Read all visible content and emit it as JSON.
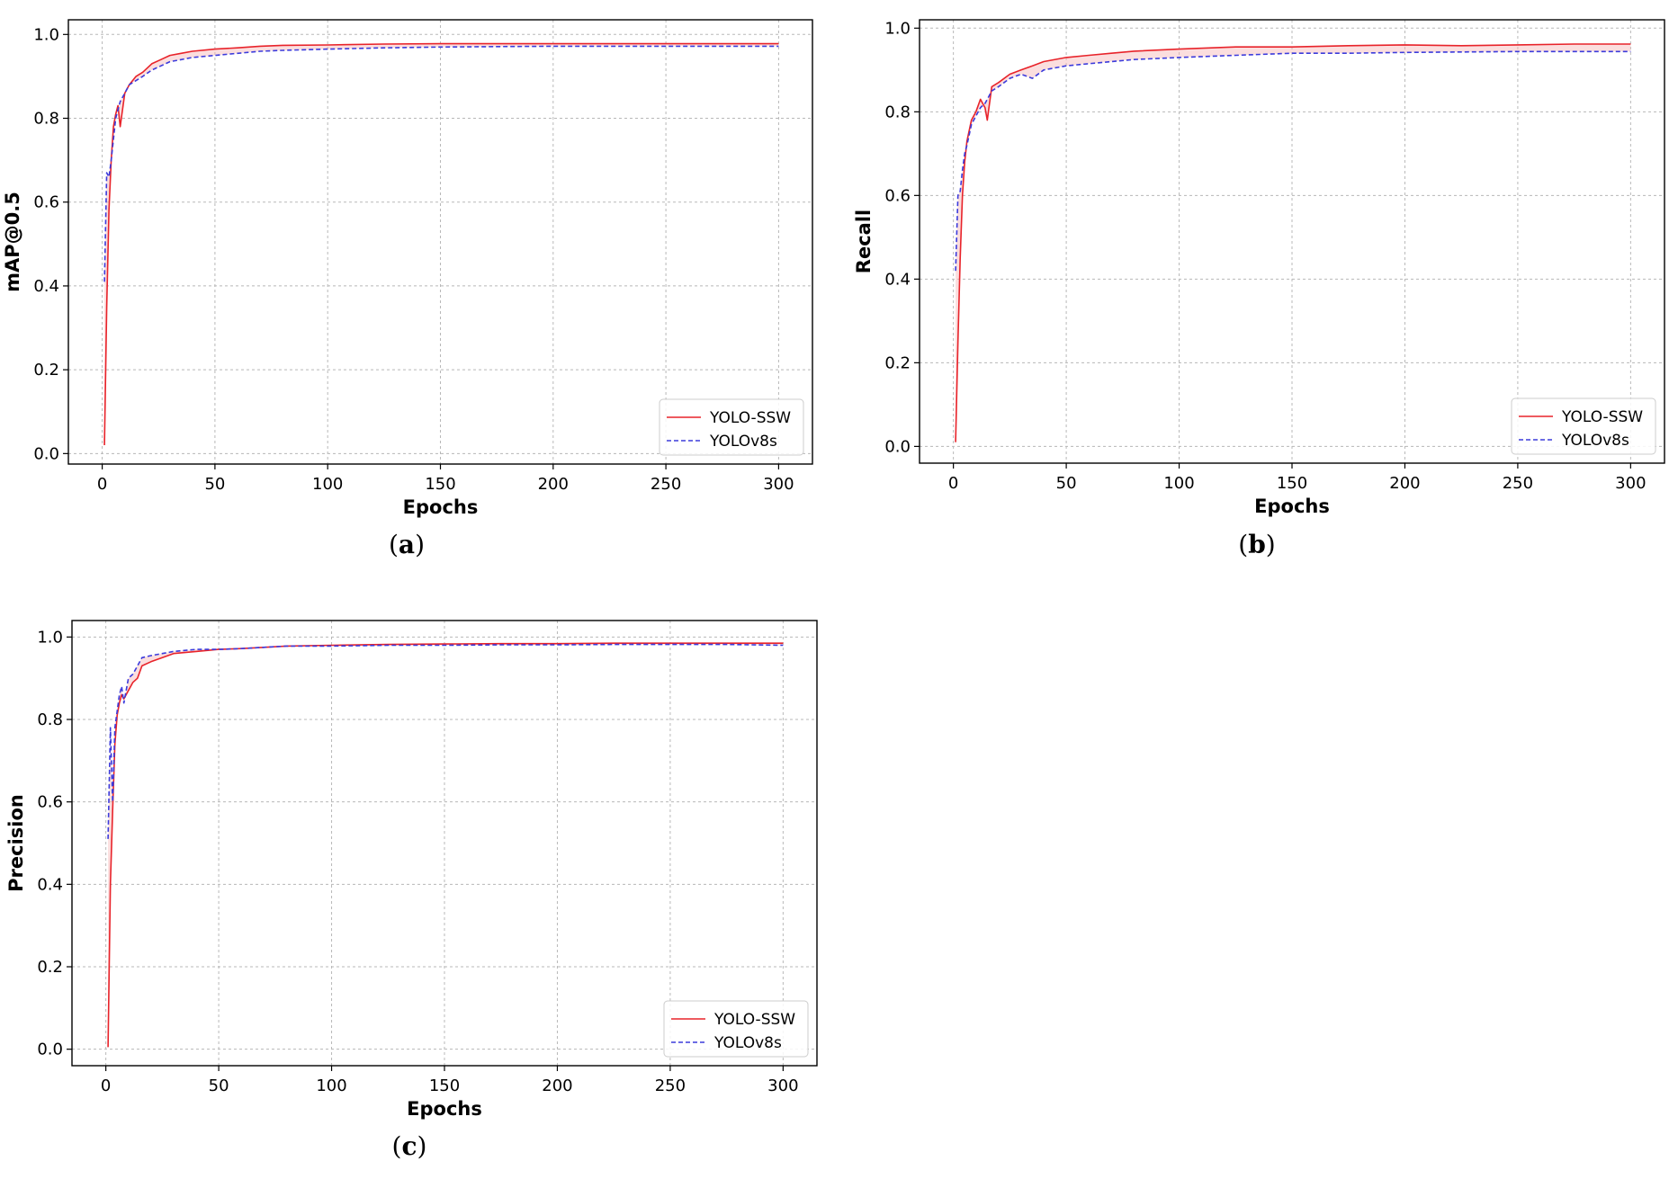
{
  "colors": {
    "series1": "#e8232a",
    "series2": "#3b3bdc",
    "grid": "#b8b8b8",
    "fill": "#f7b5b5"
  },
  "chart_data": [
    {
      "type": "line",
      "caption_letter": "a",
      "xlabel": "Epochs",
      "ylabel": "mAP@0.5",
      "xlim": [
        -15,
        315
      ],
      "ylim": [
        -0.025,
        1.035
      ],
      "xticks": [
        0,
        50,
        100,
        150,
        200,
        250,
        300
      ],
      "yticks": [
        0.0,
        0.2,
        0.4,
        0.6,
        0.8,
        1.0
      ],
      "grid": true,
      "legend": "lower right",
      "series": [
        {
          "name": "YOLO-SSW",
          "style": "solid",
          "x": [
            1,
            2,
            3,
            4,
            5,
            6,
            7,
            8,
            10,
            12,
            15,
            18,
            22,
            26,
            30,
            35,
            40,
            50,
            60,
            70,
            80,
            100,
            125,
            150,
            175,
            200,
            225,
            250,
            275,
            300
          ],
          "values": [
            0.02,
            0.35,
            0.58,
            0.7,
            0.78,
            0.81,
            0.83,
            0.78,
            0.86,
            0.88,
            0.9,
            0.91,
            0.93,
            0.94,
            0.95,
            0.955,
            0.96,
            0.965,
            0.968,
            0.972,
            0.974,
            0.975,
            0.977,
            0.978,
            0.978,
            0.978,
            0.978,
            0.978,
            0.978,
            0.978
          ]
        },
        {
          "name": "YOLOv8s",
          "style": "dashed",
          "x": [
            1,
            2,
            3,
            4,
            5,
            6,
            7,
            8,
            10,
            12,
            15,
            18,
            22,
            26,
            30,
            35,
            40,
            50,
            60,
            70,
            80,
            100,
            125,
            150,
            175,
            200,
            225,
            250,
            275,
            300
          ],
          "values": [
            0.41,
            0.67,
            0.66,
            0.7,
            0.75,
            0.8,
            0.82,
            0.84,
            0.86,
            0.88,
            0.89,
            0.9,
            0.915,
            0.925,
            0.935,
            0.94,
            0.945,
            0.95,
            0.955,
            0.96,
            0.962,
            0.965,
            0.968,
            0.97,
            0.971,
            0.972,
            0.972,
            0.972,
            0.972,
            0.972
          ]
        }
      ]
    },
    {
      "type": "line",
      "caption_letter": "b",
      "xlabel": "Epochs",
      "ylabel": "Recall",
      "xlim": [
        -15,
        315
      ],
      "ylim": [
        -0.04,
        1.02
      ],
      "xticks": [
        0,
        50,
        100,
        150,
        200,
        250,
        300
      ],
      "yticks": [
        0.0,
        0.2,
        0.4,
        0.6,
        0.8,
        1.0
      ],
      "grid": true,
      "legend": "lower right",
      "series": [
        {
          "name": "YOLO-SSW",
          "style": "solid",
          "x": [
            1,
            2,
            3,
            4,
            5,
            6,
            8,
            10,
            12,
            14,
            15,
            17,
            20,
            25,
            30,
            35,
            40,
            50,
            60,
            70,
            80,
            100,
            125,
            150,
            175,
            200,
            225,
            250,
            275,
            300
          ],
          "values": [
            0.01,
            0.25,
            0.45,
            0.6,
            0.68,
            0.73,
            0.78,
            0.8,
            0.83,
            0.81,
            0.78,
            0.86,
            0.87,
            0.89,
            0.9,
            0.91,
            0.92,
            0.93,
            0.935,
            0.94,
            0.945,
            0.95,
            0.955,
            0.955,
            0.958,
            0.96,
            0.958,
            0.96,
            0.962,
            0.962
          ]
        },
        {
          "name": "YOLOv8s",
          "style": "dashed",
          "x": [
            1,
            2,
            3,
            4,
            5,
            6,
            8,
            10,
            12,
            14,
            15,
            17,
            20,
            25,
            30,
            35,
            40,
            50,
            60,
            70,
            80,
            100,
            125,
            150,
            175,
            200,
            225,
            250,
            275,
            300
          ],
          "values": [
            0.42,
            0.6,
            0.61,
            0.66,
            0.7,
            0.72,
            0.77,
            0.79,
            0.81,
            0.82,
            0.83,
            0.85,
            0.86,
            0.88,
            0.89,
            0.88,
            0.9,
            0.91,
            0.915,
            0.92,
            0.925,
            0.93,
            0.935,
            0.94,
            0.94,
            0.942,
            0.943,
            0.944,
            0.944,
            0.944
          ]
        }
      ]
    },
    {
      "type": "line",
      "caption_letter": "c",
      "xlabel": "Epochs",
      "ylabel": "Precision",
      "xlim": [
        -15,
        315
      ],
      "ylim": [
        -0.04,
        1.04
      ],
      "xticks": [
        0,
        50,
        100,
        150,
        200,
        250,
        300
      ],
      "yticks": [
        0.0,
        0.2,
        0.4,
        0.6,
        0.8,
        1.0
      ],
      "grid": true,
      "legend": "lower right",
      "series": [
        {
          "name": "YOLO-SSW",
          "style": "solid",
          "x": [
            1,
            2,
            3,
            4,
            5,
            6,
            7,
            8,
            10,
            12,
            14,
            16,
            20,
            25,
            30,
            40,
            50,
            60,
            70,
            80,
            100,
            125,
            150,
            175,
            200,
            225,
            250,
            275,
            300
          ],
          "values": [
            0.005,
            0.4,
            0.58,
            0.74,
            0.81,
            0.84,
            0.86,
            0.85,
            0.87,
            0.89,
            0.9,
            0.93,
            0.94,
            0.95,
            0.96,
            0.965,
            0.97,
            0.972,
            0.975,
            0.978,
            0.98,
            0.982,
            0.983,
            0.984,
            0.984,
            0.985,
            0.985,
            0.985,
            0.985
          ]
        },
        {
          "name": "YOLOv8s",
          "style": "dashed",
          "x": [
            1,
            2,
            3,
            4,
            5,
            6,
            7,
            8,
            10,
            12,
            14,
            16,
            20,
            25,
            30,
            40,
            50,
            60,
            70,
            80,
            100,
            125,
            150,
            175,
            200,
            225,
            250,
            275,
            300
          ],
          "values": [
            0.51,
            0.78,
            0.6,
            0.78,
            0.82,
            0.86,
            0.88,
            0.84,
            0.9,
            0.91,
            0.93,
            0.95,
            0.955,
            0.96,
            0.965,
            0.97,
            0.97,
            0.972,
            0.975,
            0.978,
            0.978,
            0.98,
            0.98,
            0.981,
            0.981,
            0.982,
            0.982,
            0.982,
            0.98
          ]
        }
      ]
    }
  ]
}
